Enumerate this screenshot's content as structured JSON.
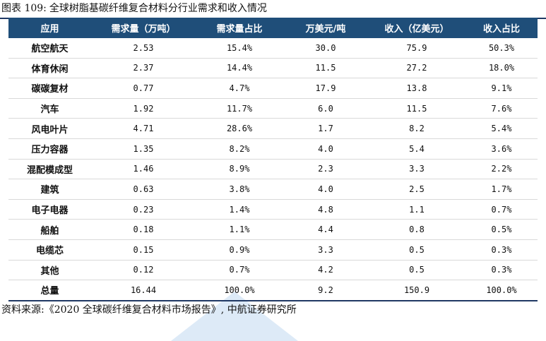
{
  "figure": {
    "number": "图表 109:",
    "title": "全球树脂基碳纤维复合材料分行业需求和收入情况"
  },
  "table": {
    "headers": [
      "应用",
      "需求量（万吨）",
      "需求量占比",
      "万美元/吨",
      "收入（亿美元）",
      "收入占比"
    ],
    "rows": [
      [
        "航空航天",
        "2.53",
        "15.4%",
        "30.0",
        "75.9",
        "50.3%"
      ],
      [
        "体育休闲",
        "2.37",
        "14.4%",
        "11.5",
        "27.2",
        "18.0%"
      ],
      [
        "碳碳复材",
        "0.77",
        "4.7%",
        "17.9",
        "13.8",
        "9.1%"
      ],
      [
        "汽车",
        "1.92",
        "11.7%",
        "6.0",
        "11.5",
        "7.6%"
      ],
      [
        "风电叶片",
        "4.71",
        "28.6%",
        "1.7",
        "8.2",
        "5.4%"
      ],
      [
        "压力容器",
        "1.35",
        "8.2%",
        "4.0",
        "5.4",
        "3.6%"
      ],
      [
        "混配模成型",
        "1.46",
        "8.9%",
        "2.3",
        "3.3",
        "2.2%"
      ],
      [
        "建筑",
        "0.63",
        "3.8%",
        "4.0",
        "2.5",
        "1.7%"
      ],
      [
        "电子电器",
        "0.23",
        "1.4%",
        "4.8",
        "1.1",
        "0.7%"
      ],
      [
        "船舶",
        "0.18",
        "1.1%",
        "4.4",
        "0.8",
        "0.5%"
      ],
      [
        "电缆芯",
        "0.15",
        "0.9%",
        "3.3",
        "0.5",
        "0.3%"
      ],
      [
        "其他",
        "0.12",
        "0.7%",
        "4.2",
        "0.5",
        "0.3%"
      ]
    ],
    "total": [
      "总量",
      "16.44",
      "100.0%",
      "9.2",
      "150.9",
      "100.0%"
    ]
  },
  "source": "资料来源:《2020 全球碳纤维复合材料市场报告》, 中航证券研究所",
  "colors": {
    "header_bg": "#1f4e79",
    "header_text": "#ffffff",
    "rule": "#1f3864"
  }
}
